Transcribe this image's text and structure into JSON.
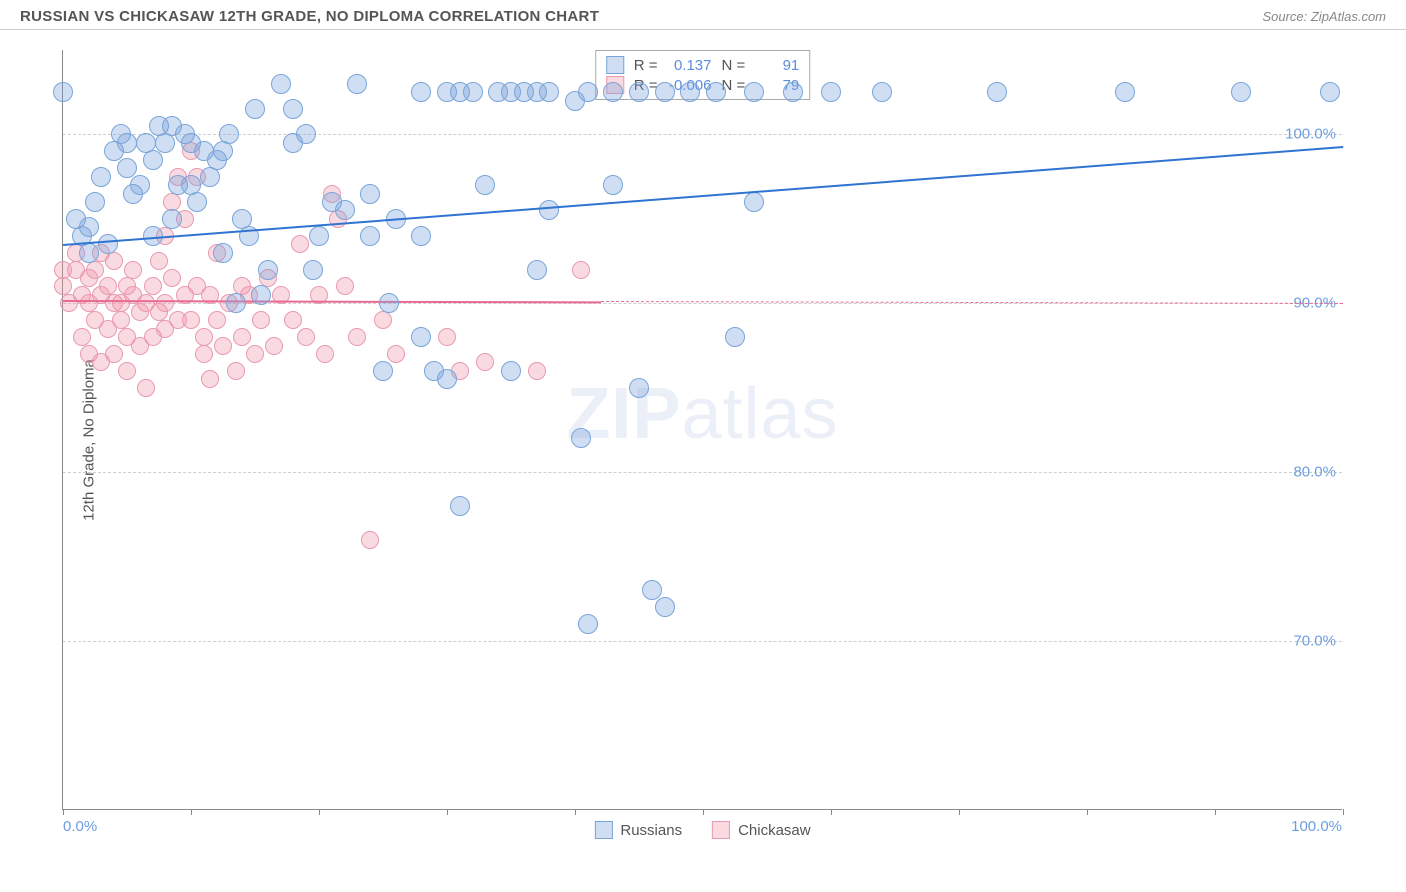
{
  "header": {
    "title": "RUSSIAN VS CHICKASAW 12TH GRADE, NO DIPLOMA CORRELATION CHART",
    "source": "Source: ZipAtlas.com"
  },
  "chart": {
    "ylabel": "12th Grade, No Diploma",
    "watermark_a": "ZIP",
    "watermark_b": "atlas",
    "xlim": [
      0,
      100
    ],
    "ylim": [
      60,
      105
    ],
    "ytick_labels": [
      {
        "v": 100,
        "label": "100.0%"
      },
      {
        "v": 90,
        "label": "90.0%"
      },
      {
        "v": 80,
        "label": "80.0%"
      },
      {
        "v": 70,
        "label": "70.0%"
      }
    ],
    "xtick_positions": [
      0,
      10,
      20,
      30,
      40,
      50,
      60,
      70,
      80,
      90,
      100
    ],
    "x_axis_labels": {
      "min": "0.0%",
      "max": "100.0%"
    },
    "series": {
      "russians": {
        "label": "Russians",
        "fill": "rgba(120,160,220,0.35)",
        "stroke": "#7aa5d8",
        "trend_color": "#2f74d0",
        "trend": {
          "x0": 0,
          "y0": 93.5,
          "x1": 100,
          "y1": 99.3,
          "solid_to_x": 100
        },
        "r_label": "R =",
        "r_value": "0.137",
        "n_label": "N =",
        "n_value": "91",
        "marker_size": 20,
        "points": [
          [
            0,
            102.5
          ],
          [
            28,
            102.5
          ],
          [
            30,
            102.5
          ],
          [
            31,
            102.5
          ],
          [
            32,
            102.5
          ],
          [
            34,
            102.5
          ],
          [
            35,
            102.5
          ],
          [
            36,
            102.5
          ],
          [
            37,
            102.5
          ],
          [
            38,
            102.5
          ],
          [
            41,
            102.5
          ],
          [
            43,
            102.5
          ],
          [
            45,
            102.5
          ],
          [
            47,
            102.5
          ],
          [
            49,
            102.5
          ],
          [
            51,
            102.5
          ],
          [
            54,
            102.5
          ],
          [
            57,
            102.5
          ],
          [
            60,
            102.5
          ],
          [
            64,
            102.5
          ],
          [
            73,
            102.5
          ],
          [
            83,
            102.5
          ],
          [
            92,
            102.5
          ],
          [
            99,
            102.5
          ],
          [
            1,
            95
          ],
          [
            1.5,
            94
          ],
          [
            2,
            94.5
          ],
          [
            2,
            93
          ],
          [
            2.5,
            96
          ],
          [
            3,
            97.5
          ],
          [
            3.5,
            93.5
          ],
          [
            4,
            99
          ],
          [
            4.5,
            100
          ],
          [
            5,
            98
          ],
          [
            5,
            99.5
          ],
          [
            5.5,
            96.5
          ],
          [
            6,
            97
          ],
          [
            6.5,
            99.5
          ],
          [
            7,
            98.5
          ],
          [
            7,
            94
          ],
          [
            7.5,
            100.5
          ],
          [
            8,
            99.5
          ],
          [
            8.5,
            100.5
          ],
          [
            8.5,
            95
          ],
          [
            9,
            97
          ],
          [
            9.5,
            100
          ],
          [
            10,
            99.5
          ],
          [
            10,
            97
          ],
          [
            10.5,
            96
          ],
          [
            11,
            99
          ],
          [
            11.5,
            97.5
          ],
          [
            12,
            98.5
          ],
          [
            12.5,
            93
          ],
          [
            12.5,
            99
          ],
          [
            13,
            100
          ],
          [
            13.5,
            90
          ],
          [
            14,
            95
          ],
          [
            14.5,
            94
          ],
          [
            15,
            101.5
          ],
          [
            15.5,
            90.5
          ],
          [
            16,
            92
          ],
          [
            17,
            103
          ],
          [
            18,
            99.5
          ],
          [
            18,
            101.5
          ],
          [
            19,
            100
          ],
          [
            19.5,
            92
          ],
          [
            20,
            94
          ],
          [
            21,
            96
          ],
          [
            22,
            95.5
          ],
          [
            23,
            103
          ],
          [
            24,
            94
          ],
          [
            24,
            96.5
          ],
          [
            25,
            86
          ],
          [
            25.5,
            90
          ],
          [
            26,
            95
          ],
          [
            28,
            94
          ],
          [
            28,
            88
          ],
          [
            29,
            86
          ],
          [
            30,
            85.5
          ],
          [
            31,
            78
          ],
          [
            33,
            97
          ],
          [
            35,
            86
          ],
          [
            37,
            92
          ],
          [
            38,
            95.5
          ],
          [
            40,
            102
          ],
          [
            40.5,
            82
          ],
          [
            41,
            71
          ],
          [
            43,
            97
          ],
          [
            45,
            85
          ],
          [
            46,
            73
          ],
          [
            47,
            72
          ],
          [
            52.5,
            88
          ],
          [
            54,
            96
          ]
        ]
      },
      "chickasaw": {
        "label": "Chickasaw",
        "fill": "rgba(240,150,170,0.35)",
        "stroke": "#e89ab0",
        "trend_color": "#e86a91",
        "trend": {
          "x0": 0,
          "y0": 90.2,
          "x1": 100,
          "y1": 90.0,
          "solid_to_x": 42
        },
        "r_label": "R =",
        "r_value": "-0.006",
        "n_label": "N =",
        "n_value": "79",
        "marker_size": 18,
        "points": [
          [
            0,
            92
          ],
          [
            0,
            91
          ],
          [
            0.5,
            90
          ],
          [
            1,
            93
          ],
          [
            1,
            92
          ],
          [
            1.5,
            90.5
          ],
          [
            1.5,
            88
          ],
          [
            2,
            91.5
          ],
          [
            2,
            90
          ],
          [
            2,
            87
          ],
          [
            2.5,
            92
          ],
          [
            2.5,
            89
          ],
          [
            3,
            90.5
          ],
          [
            3,
            93
          ],
          [
            3,
            86.5
          ],
          [
            3.5,
            91
          ],
          [
            3.5,
            88.5
          ],
          [
            4,
            90
          ],
          [
            4,
            92.5
          ],
          [
            4,
            87
          ],
          [
            4.5,
            90
          ],
          [
            4.5,
            89
          ],
          [
            5,
            91
          ],
          [
            5,
            88
          ],
          [
            5,
            86
          ],
          [
            5.5,
            90.5
          ],
          [
            5.5,
            92
          ],
          [
            6,
            89.5
          ],
          [
            6,
            87.5
          ],
          [
            6.5,
            90
          ],
          [
            6.5,
            85
          ],
          [
            7,
            91
          ],
          [
            7,
            88
          ],
          [
            7.5,
            89.5
          ],
          [
            7.5,
            92.5
          ],
          [
            8,
            90
          ],
          [
            8,
            88.5
          ],
          [
            8,
            94
          ],
          [
            8.5,
            91.5
          ],
          [
            8.5,
            96
          ],
          [
            9,
            89
          ],
          [
            9,
            97.5
          ],
          [
            9.5,
            90.5
          ],
          [
            9.5,
            95
          ],
          [
            10,
            89
          ],
          [
            10,
            99
          ],
          [
            10.5,
            91
          ],
          [
            10.5,
            97.5
          ],
          [
            11,
            88
          ],
          [
            11,
            87
          ],
          [
            11.5,
            90.5
          ],
          [
            11.5,
            85.5
          ],
          [
            12,
            89
          ],
          [
            12,
            93
          ],
          [
            12.5,
            87.5
          ],
          [
            13,
            90
          ],
          [
            13.5,
            86
          ],
          [
            14,
            91
          ],
          [
            14,
            88
          ],
          [
            14.5,
            90.5
          ],
          [
            15,
            87
          ],
          [
            15.5,
            89
          ],
          [
            16,
            91.5
          ],
          [
            16.5,
            87.5
          ],
          [
            17,
            90.5
          ],
          [
            18,
            89
          ],
          [
            18.5,
            93.5
          ],
          [
            19,
            88
          ],
          [
            20,
            90.5
          ],
          [
            20.5,
            87
          ],
          [
            21,
            96.5
          ],
          [
            21.5,
            95
          ],
          [
            22,
            91
          ],
          [
            23,
            88
          ],
          [
            24,
            76
          ],
          [
            25,
            89
          ],
          [
            26,
            87
          ],
          [
            30,
            88
          ],
          [
            31,
            86
          ],
          [
            33,
            86.5
          ],
          [
            37,
            86
          ],
          [
            40.5,
            92
          ]
        ]
      }
    }
  }
}
